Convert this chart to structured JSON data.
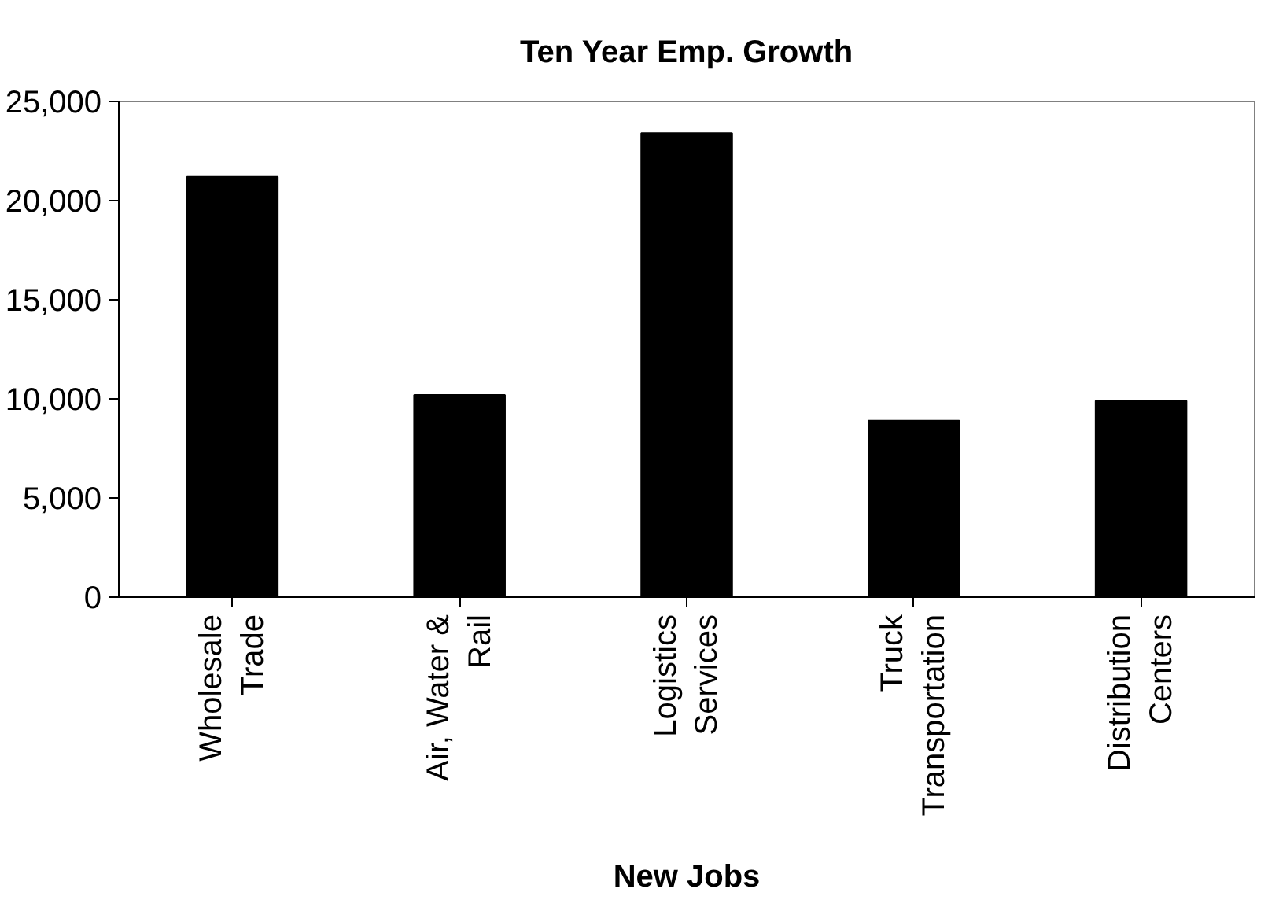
{
  "chart_data": {
    "type": "bar",
    "title": "Ten Year Emp. Growth",
    "xlabel": "New Jobs",
    "categories": [
      "Wholesale Trade",
      "Air, Water & Rail",
      "Logistics Services",
      "Truck Transportation",
      "Distribution Centers"
    ],
    "values": [
      21200,
      10200,
      23400,
      8900,
      9900
    ],
    "color": "#000000",
    "ylim": [
      0,
      25000
    ],
    "yticks": [
      {
        "value": 0,
        "label": "0"
      },
      {
        "value": 5000,
        "label": "5,000"
      },
      {
        "value": 10000,
        "label": "10,000"
      },
      {
        "value": 15000,
        "label": "15,000"
      },
      {
        "value": 20000,
        "label": "20,000"
      },
      {
        "value": 25000,
        "label": "25,000"
      }
    ],
    "grid": false
  }
}
